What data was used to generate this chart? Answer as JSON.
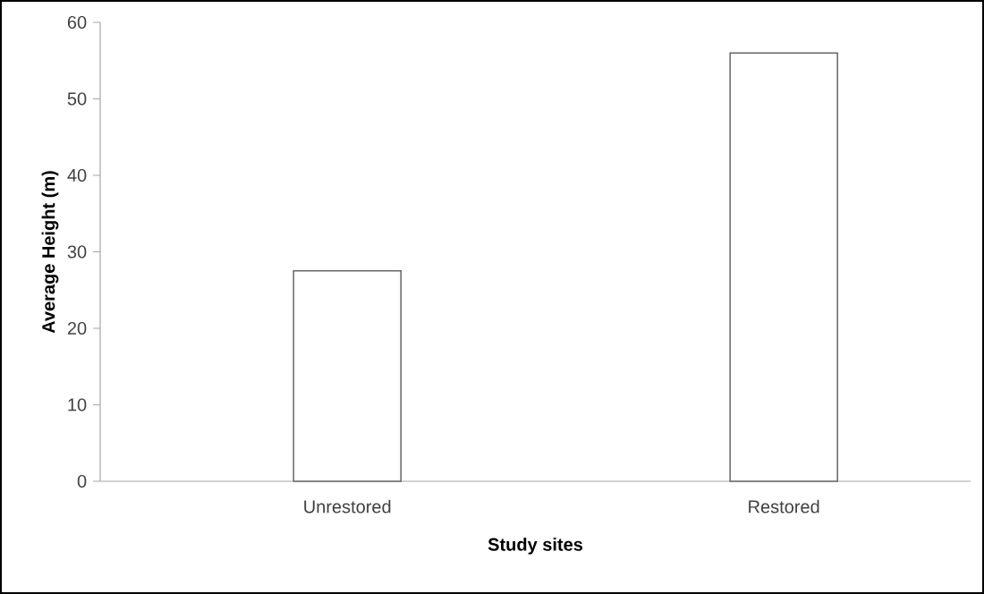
{
  "chart_data": {
    "type": "bar",
    "xlabel": "Study sites",
    "ylabel": "Average Height (m)",
    "categories": [
      "Unrestored",
      "Restored"
    ],
    "values": [
      27.5,
      56
    ],
    "color": "#ffffff",
    "ylim": [
      0,
      60
    ],
    "yticks": [
      0,
      10,
      20,
      30,
      40,
      50,
      60
    ],
    "grid": false
  }
}
